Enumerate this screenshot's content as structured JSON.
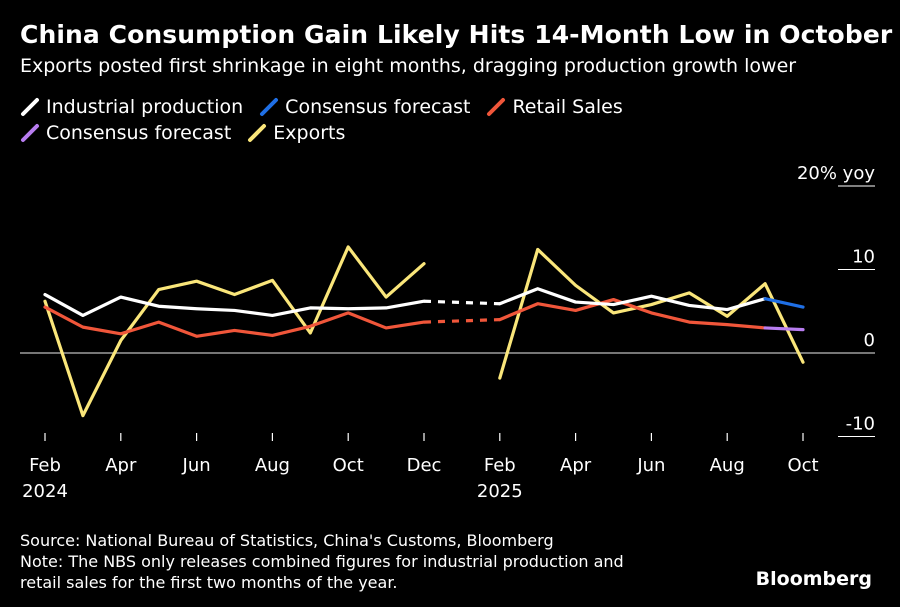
{
  "header": {
    "title": "China Consumption Gain Likely Hits 14-Month Low in October",
    "subtitle": "Exports posted first shrinkage in eight months, dragging production growth lower"
  },
  "legend": [
    {
      "label": "Industrial production",
      "color": "#ffffff"
    },
    {
      "label": "Consensus forecast",
      "color": "#1f6fe5"
    },
    {
      "label": "Retail Sales",
      "color": "#f0563a"
    },
    {
      "label": "Consensus forecast",
      "color": "#b87df0"
    },
    {
      "label": "Exports",
      "color": "#fae67a"
    }
  ],
  "footer": {
    "source": "Source: National Bureau of Statistics, China's Customs, Bloomberg",
    "note_line1": "Note: The NBS only releases combined figures for industrial production and",
    "note_line2": "retail sales for the first two months of the year.",
    "brand": "Bloomberg"
  },
  "chart_data": {
    "type": "line",
    "ylabel_unit": "20% yoy",
    "ylim": [
      -10,
      20
    ],
    "yticks": [
      {
        "value": 20,
        "label": "20% yoy"
      },
      {
        "value": 10,
        "label": "10"
      },
      {
        "value": 0,
        "label": "0"
      },
      {
        "value": -10,
        "label": "-10"
      }
    ],
    "x": [
      "2024-02",
      "2024-03",
      "2024-04",
      "2024-05",
      "2024-06",
      "2024-07",
      "2024-08",
      "2024-09",
      "2024-10",
      "2024-11",
      "2024-12",
      "2025-01",
      "2025-02",
      "2025-03",
      "2025-04",
      "2025-05",
      "2025-06",
      "2025-07",
      "2025-08",
      "2025-09",
      "2025-10"
    ],
    "xticks": [
      {
        "label": "Feb",
        "sub": "2024"
      },
      {
        "label": "",
        "sub": ""
      },
      {
        "label": "Apr",
        "sub": ""
      },
      {
        "label": "",
        "sub": ""
      },
      {
        "label": "Jun",
        "sub": ""
      },
      {
        "label": "",
        "sub": ""
      },
      {
        "label": "Aug",
        "sub": ""
      },
      {
        "label": "",
        "sub": ""
      },
      {
        "label": "Oct",
        "sub": ""
      },
      {
        "label": "",
        "sub": ""
      },
      {
        "label": "Dec",
        "sub": ""
      },
      {
        "label": "",
        "sub": ""
      },
      {
        "label": "Feb",
        "sub": "2025"
      },
      {
        "label": "",
        "sub": ""
      },
      {
        "label": "Apr",
        "sub": ""
      },
      {
        "label": "",
        "sub": ""
      },
      {
        "label": "Jun",
        "sub": ""
      },
      {
        "label": "",
        "sub": ""
      },
      {
        "label": "Aug",
        "sub": ""
      },
      {
        "label": "",
        "sub": ""
      },
      {
        "label": "Oct",
        "sub": ""
      }
    ],
    "series": [
      {
        "name": "Industrial production",
        "color": "#ffffff",
        "values": [
          7.0,
          4.5,
          6.7,
          5.6,
          5.3,
          5.1,
          4.5,
          5.4,
          5.3,
          5.4,
          6.2,
          null,
          5.9,
          7.7,
          6.1,
          5.8,
          6.8,
          5.7,
          5.2,
          6.5,
          null
        ],
        "gaps": [
          [
            10,
            12
          ]
        ]
      },
      {
        "name": "Consensus forecast",
        "color": "#1f6fe5",
        "values": [
          null,
          null,
          null,
          null,
          null,
          null,
          null,
          null,
          null,
          null,
          null,
          null,
          null,
          null,
          null,
          null,
          null,
          null,
          null,
          6.5,
          5.5
        ]
      },
      {
        "name": "Retail Sales",
        "color": "#f0563a",
        "values": [
          5.5,
          3.1,
          2.3,
          3.7,
          2.0,
          2.7,
          2.1,
          3.2,
          4.8,
          3.0,
          3.7,
          null,
          4.0,
          5.9,
          5.1,
          6.4,
          4.8,
          3.7,
          3.4,
          3.0,
          null
        ],
        "gaps": [
          [
            10,
            12
          ]
        ]
      },
      {
        "name": "Consensus forecast",
        "color": "#b87df0",
        "values": [
          null,
          null,
          null,
          null,
          null,
          null,
          null,
          null,
          null,
          null,
          null,
          null,
          null,
          null,
          null,
          null,
          null,
          null,
          null,
          3.0,
          2.8
        ]
      },
      {
        "name": "Exports",
        "color": "#fae67a",
        "values": [
          6.2,
          -7.5,
          1.5,
          7.6,
          8.6,
          7.0,
          8.7,
          2.4,
          12.7,
          6.7,
          10.7,
          null,
          -3.0,
          12.4,
          8.1,
          4.8,
          5.8,
          7.2,
          4.4,
          8.3,
          -1.1
        ]
      }
    ]
  }
}
